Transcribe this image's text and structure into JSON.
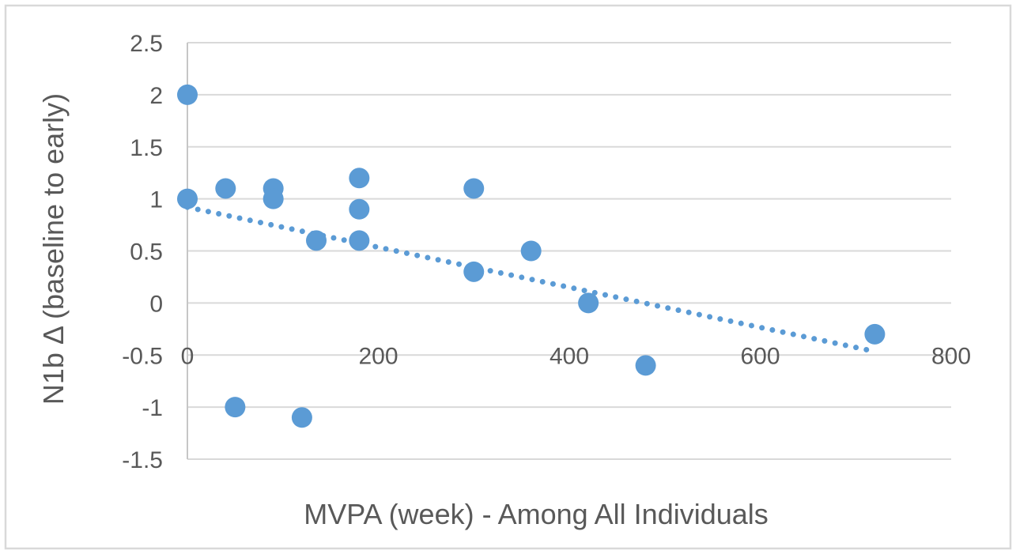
{
  "chart_data": {
    "type": "scatter",
    "title": "",
    "xlabel": "MVPA (week) - Among All Individuals",
    "ylabel": "N1b Δ (baseline to early)",
    "xlim": [
      0,
      800
    ],
    "ylim": [
      -1.5,
      2.5
    ],
    "x_ticks": [
      "0",
      "200",
      "400",
      "600",
      "800"
    ],
    "y_ticks": [
      "2.5",
      "2",
      "1.5",
      "1",
      "0.5",
      "0",
      "-0.5",
      "-1",
      "-1.5"
    ],
    "grid": "horizontal-only",
    "legend": "none",
    "x_tick_label_row_value": -0.5,
    "series": [
      {
        "marker": "circle",
        "color": "#5B9BD5",
        "points": [
          {
            "x": 0,
            "y": 2.0
          },
          {
            "x": 0,
            "y": 1.0
          },
          {
            "x": 40,
            "y": 1.1
          },
          {
            "x": 50,
            "y": -1.0
          },
          {
            "x": 90,
            "y": 1.1
          },
          {
            "x": 90,
            "y": 1.0
          },
          {
            "x": 120,
            "y": -1.1
          },
          {
            "x": 135,
            "y": 0.6
          },
          {
            "x": 180,
            "y": 1.2
          },
          {
            "x": 180,
            "y": 0.9
          },
          {
            "x": 180,
            "y": 0.6
          },
          {
            "x": 300,
            "y": 1.1
          },
          {
            "x": 300,
            "y": 0.3
          },
          {
            "x": 360,
            "y": 0.5
          },
          {
            "x": 420,
            "y": 0.0
          },
          {
            "x": 480,
            "y": -0.6
          },
          {
            "x": 720,
            "y": -0.3
          }
        ]
      }
    ],
    "trendline": {
      "style": "dotted",
      "color": "#5B9BD5",
      "start": {
        "x": 0,
        "y": 0.92
      },
      "end": {
        "x": 712,
        "y": -0.45
      }
    },
    "colors": {
      "marker": "#5B9BD5",
      "text": "#595959",
      "gridline": "#D9D9D9",
      "axis_line": "#C6C6C6",
      "frame_border": "#D9D9D9",
      "background": "#FFFFFF"
    }
  }
}
